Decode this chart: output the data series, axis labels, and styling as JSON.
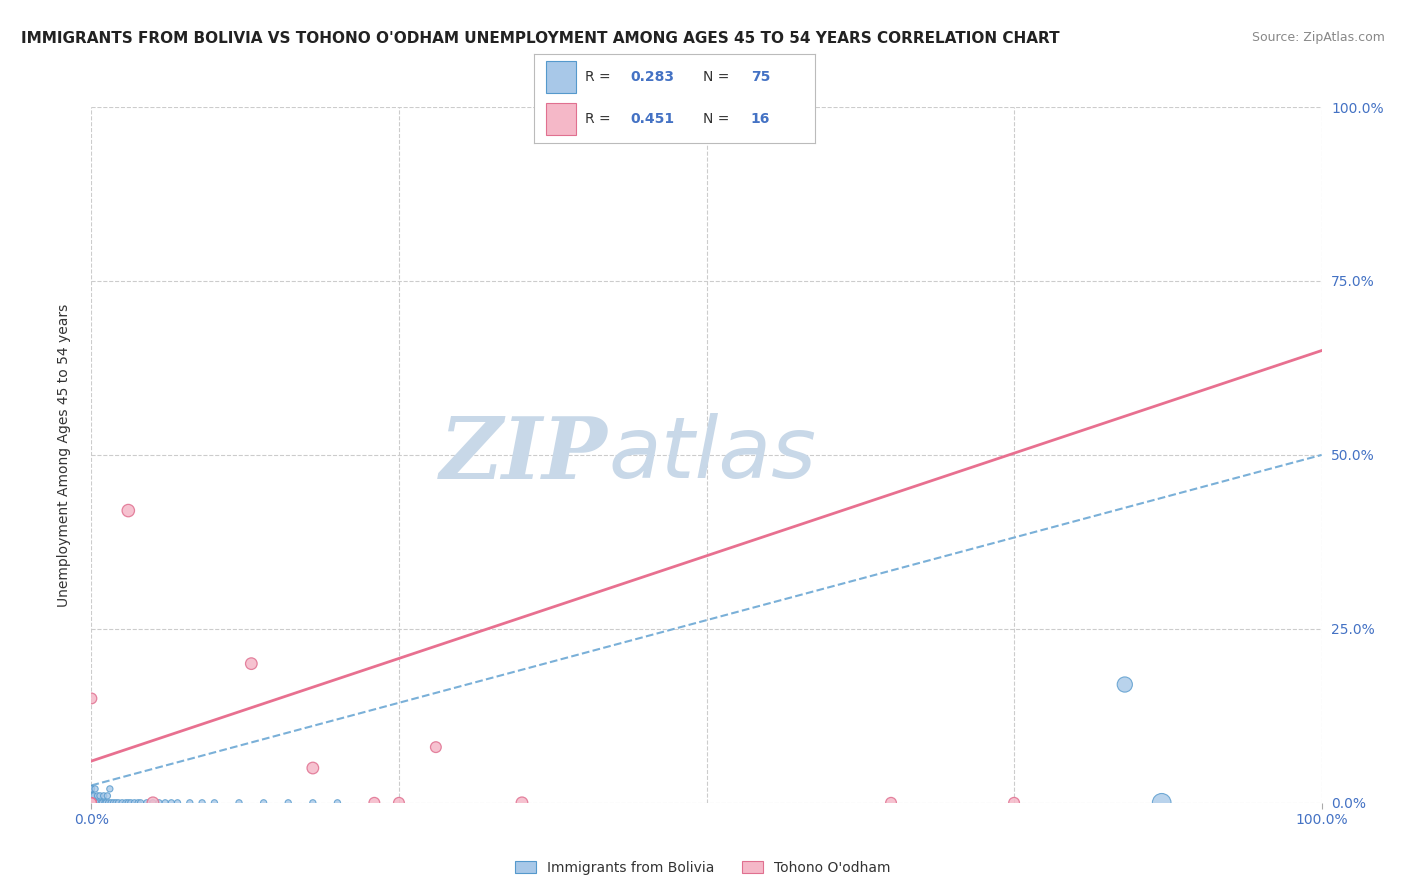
{
  "title": "IMMIGRANTS FROM BOLIVIA VS TOHONO O'ODHAM UNEMPLOYMENT AMONG AGES 45 TO 54 YEARS CORRELATION CHART",
  "source": "Source: ZipAtlas.com",
  "ylabel": "Unemployment Among Ages 45 to 54 years",
  "xlim": [
    0,
    1.0
  ],
  "ylim": [
    0,
    1.0
  ],
  "ytick_positions": [
    0.0,
    0.25,
    0.5,
    0.75,
    1.0
  ],
  "legend_R1": "0.283",
  "legend_N1": "75",
  "legend_R2": "0.451",
  "legend_N2": "16",
  "blue_color": "#a8c8e8",
  "blue_edge": "#5599cc",
  "pink_color": "#f5b8c8",
  "pink_edge": "#e07090",
  "line_blue_color": "#7ab0d8",
  "line_pink_color": "#e87090",
  "watermark_zip": "ZIP",
  "watermark_atlas": "atlas",
  "watermark_color": "#c8d8e8",
  "blue_scatter_x": [
    0.0,
    0.0,
    0.0,
    0.0,
    0.0,
    0.0,
    0.0,
    0.0,
    0.0,
    0.0,
    0.0,
    0.0,
    0.0,
    0.0,
    0.0,
    0.0,
    0.0,
    0.0,
    0.0,
    0.0,
    0.0,
    0.0,
    0.0,
    0.0,
    0.0,
    0.0,
    0.0,
    0.0,
    0.0,
    0.0,
    0.001,
    0.001,
    0.002,
    0.002,
    0.003,
    0.003,
    0.004,
    0.005,
    0.006,
    0.007,
    0.008,
    0.009,
    0.01,
    0.011,
    0.012,
    0.013,
    0.014,
    0.015,
    0.016,
    0.018,
    0.02,
    0.022,
    0.025,
    0.028,
    0.03,
    0.032,
    0.035,
    0.038,
    0.04,
    0.045,
    0.05,
    0.055,
    0.06,
    0.065,
    0.07,
    0.08,
    0.09,
    0.1,
    0.12,
    0.14,
    0.16,
    0.18,
    0.2,
    0.84,
    0.87
  ],
  "blue_scatter_y": [
    0.0,
    0.0,
    0.0,
    0.0,
    0.0,
    0.0,
    0.0,
    0.0,
    0.0,
    0.0,
    0.0,
    0.0,
    0.0,
    0.0,
    0.0,
    0.0,
    0.0,
    0.0,
    0.0,
    0.0,
    0.0,
    0.0,
    0.0,
    0.0,
    0.0,
    0.01,
    0.01,
    0.01,
    0.02,
    0.02,
    0.0,
    0.01,
    0.0,
    0.01,
    0.0,
    0.02,
    0.0,
    0.01,
    0.0,
    0.01,
    0.0,
    0.0,
    0.01,
    0.0,
    0.0,
    0.01,
    0.0,
    0.02,
    0.0,
    0.0,
    0.0,
    0.0,
    0.0,
    0.0,
    0.0,
    0.0,
    0.0,
    0.0,
    0.0,
    0.0,
    0.0,
    0.0,
    0.0,
    0.0,
    0.0,
    0.0,
    0.0,
    0.0,
    0.0,
    0.0,
    0.0,
    0.0,
    0.0,
    0.17,
    0.0
  ],
  "blue_scatter_sizes": [
    20,
    20,
    20,
    20,
    20,
    20,
    20,
    20,
    20,
    20,
    20,
    20,
    20,
    20,
    20,
    20,
    20,
    20,
    20,
    20,
    20,
    20,
    20,
    20,
    20,
    20,
    20,
    20,
    20,
    20,
    20,
    20,
    20,
    20,
    20,
    20,
    20,
    20,
    20,
    20,
    20,
    20,
    20,
    20,
    20,
    20,
    20,
    20,
    20,
    20,
    20,
    20,
    20,
    20,
    20,
    20,
    20,
    20,
    20,
    20,
    20,
    20,
    20,
    20,
    20,
    20,
    20,
    20,
    20,
    20,
    20,
    20,
    20,
    120,
    180
  ],
  "pink_scatter_x": [
    0.0,
    0.0,
    0.0,
    0.0,
    0.0,
    0.0,
    0.03,
    0.05,
    0.13,
    0.18,
    0.23,
    0.25,
    0.28,
    0.35,
    0.65,
    0.75
  ],
  "pink_scatter_y": [
    0.0,
    0.0,
    0.0,
    0.0,
    0.0,
    0.15,
    0.42,
    0.0,
    0.2,
    0.05,
    0.0,
    0.0,
    0.08,
    0.0,
    0.0,
    0.0
  ],
  "pink_scatter_sizes": [
    50,
    50,
    50,
    50,
    50,
    60,
    80,
    70,
    70,
    70,
    60,
    60,
    60,
    70,
    60,
    60
  ],
  "blue_line_x": [
    0.0,
    1.0
  ],
  "blue_line_y": [
    0.025,
    0.5
  ],
  "pink_line_x": [
    0.0,
    1.0
  ],
  "pink_line_y": [
    0.06,
    0.65
  ],
  "bg_color": "#ffffff",
  "grid_color": "#cccccc",
  "title_fontsize": 11,
  "label_fontsize": 10,
  "tick_fontsize": 10
}
